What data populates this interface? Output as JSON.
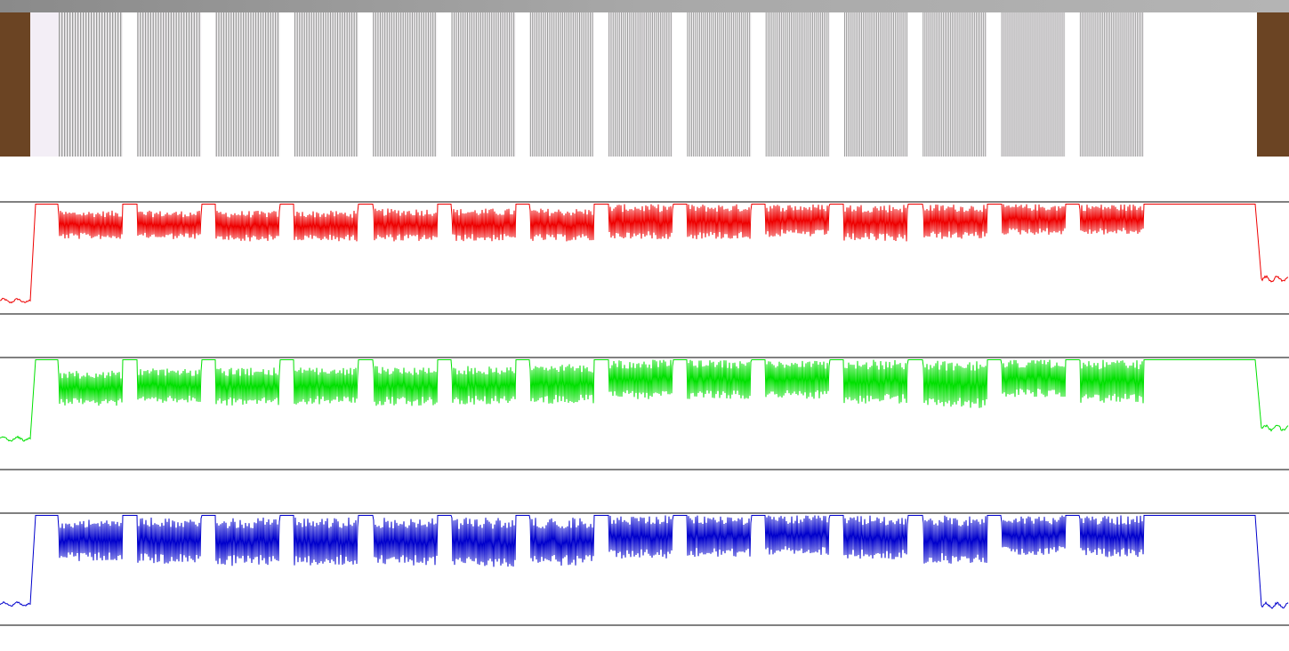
{
  "window": {
    "title_bar_color": "#999999"
  },
  "strip_image": {
    "description_kind": "photographed resolution test strip with vertical line groups",
    "background": "#ffffff",
    "frame_color": "#6b4423",
    "line_group_count": 14,
    "line_color": "#9a9a9a"
  },
  "chart_data": [
    {
      "type": "line",
      "channel": "red",
      "color": "#ee0000",
      "x_samples": 1449,
      "ylim": [
        0,
        255
      ],
      "baseline_left": 30,
      "baseline_right": 80,
      "plateau": 250,
      "groups": [
        {
          "min": 170,
          "max": 235
        },
        {
          "min": 170,
          "max": 235
        },
        {
          "min": 165,
          "max": 235
        },
        {
          "min": 165,
          "max": 235
        },
        {
          "min": 165,
          "max": 240
        },
        {
          "min": 165,
          "max": 240
        },
        {
          "min": 165,
          "max": 240
        },
        {
          "min": 170,
          "max": 250
        },
        {
          "min": 170,
          "max": 250
        },
        {
          "min": 175,
          "max": 250
        },
        {
          "min": 165,
          "max": 250
        },
        {
          "min": 170,
          "max": 250
        },
        {
          "min": 180,
          "max": 250
        },
        {
          "min": 180,
          "max": 250
        }
      ]
    },
    {
      "type": "line",
      "channel": "green",
      "color": "#00e000",
      "x_samples": 1449,
      "ylim": [
        0,
        255
      ],
      "baseline_left": 70,
      "baseline_right": 95,
      "plateau": 250,
      "groups": [
        {
          "min": 145,
          "max": 225
        },
        {
          "min": 150,
          "max": 230
        },
        {
          "min": 145,
          "max": 232
        },
        {
          "min": 148,
          "max": 232
        },
        {
          "min": 145,
          "max": 236
        },
        {
          "min": 148,
          "max": 236
        },
        {
          "min": 150,
          "max": 240
        },
        {
          "min": 160,
          "max": 250
        },
        {
          "min": 160,
          "max": 250
        },
        {
          "min": 160,
          "max": 250
        },
        {
          "min": 150,
          "max": 250
        },
        {
          "min": 140,
          "max": 250
        },
        {
          "min": 165,
          "max": 250
        },
        {
          "min": 150,
          "max": 250
        }
      ]
    },
    {
      "type": "line",
      "channel": "blue",
      "color": "#0000cc",
      "x_samples": 1449,
      "ylim": [
        0,
        255
      ],
      "baseline_left": 48,
      "baseline_right": 45,
      "plateau": 250,
      "groups": [
        {
          "min": 145,
          "max": 240
        },
        {
          "min": 140,
          "max": 245
        },
        {
          "min": 135,
          "max": 245
        },
        {
          "min": 135,
          "max": 245
        },
        {
          "min": 135,
          "max": 245
        },
        {
          "min": 130,
          "max": 245
        },
        {
          "min": 135,
          "max": 245
        },
        {
          "min": 150,
          "max": 250
        },
        {
          "min": 155,
          "max": 250
        },
        {
          "min": 160,
          "max": 250
        },
        {
          "min": 150,
          "max": 250
        },
        {
          "min": 140,
          "max": 250
        },
        {
          "min": 160,
          "max": 250
        },
        {
          "min": 155,
          "max": 250
        }
      ]
    }
  ]
}
